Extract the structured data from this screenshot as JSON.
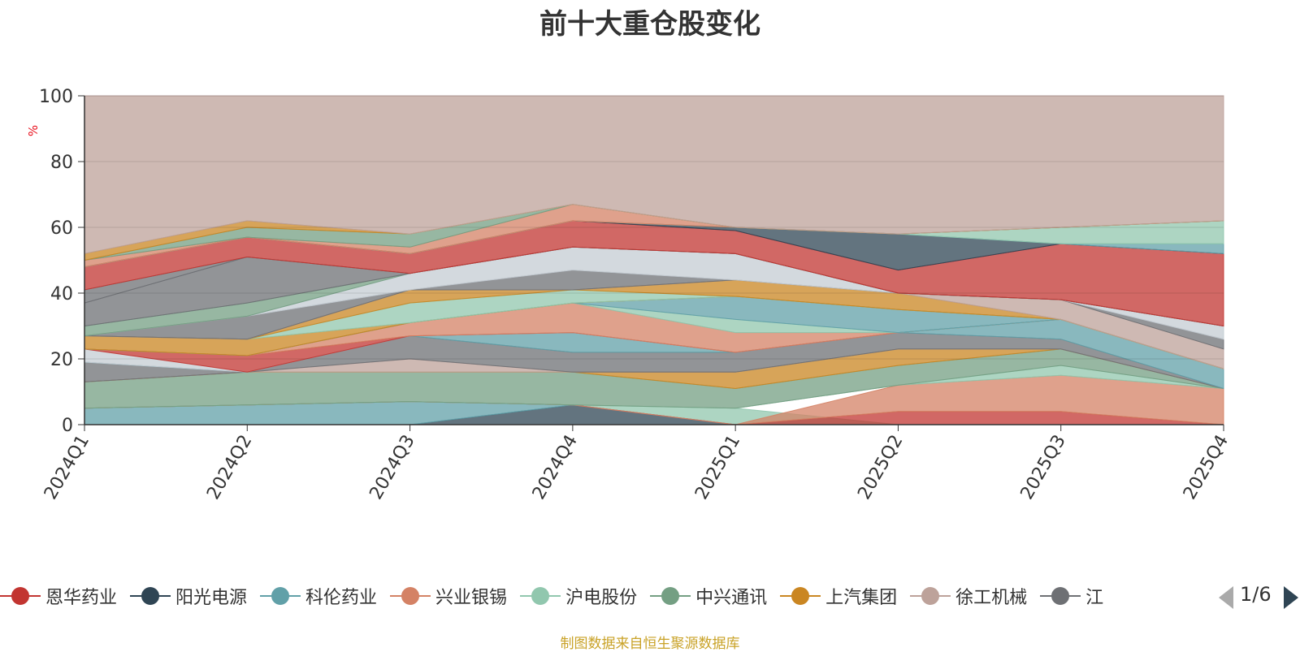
{
  "pager": {
    "text": "1/6"
  },
  "source": "制图数据来自恒生聚源数据库",
  "chart_data": {
    "type": "area",
    "title": "前十大重仓股变化",
    "ylabel": "%",
    "ylim": [
      0,
      100
    ],
    "yticks": [
      0,
      20,
      40,
      60,
      80,
      100
    ],
    "grid": true,
    "legend_position": "bottom",
    "categories": [
      "2024Q1",
      "2024Q2",
      "2024Q3",
      "2024Q4",
      "2025Q1",
      "2025Q2",
      "2025Q3",
      "2025Q4"
    ],
    "bands": [
      {
        "color": "#2f4554",
        "values": [
          [
            0,
            0
          ],
          [
            0,
            0
          ],
          [
            0,
            0
          ],
          [
            0,
            6
          ],
          [
            0,
            0
          ],
          [
            0,
            0
          ],
          [
            0,
            0
          ],
          [
            0,
            0
          ]
        ]
      },
      {
        "color": "#61a0a8",
        "values": [
          [
            0,
            5
          ],
          [
            0,
            6
          ],
          [
            0,
            7
          ],
          [
            6,
            6
          ],
          [
            0,
            0
          ],
          [
            0,
            0
          ],
          [
            0,
            0
          ],
          [
            0,
            0
          ]
        ]
      },
      {
        "color": "#91c7ae",
        "values": [
          [
            5,
            5
          ],
          [
            6,
            6
          ],
          [
            7,
            7
          ],
          [
            6,
            6
          ],
          [
            0,
            5
          ],
          [
            0,
            0
          ],
          [
            0,
            0
          ],
          [
            0,
            0
          ]
        ]
      },
      {
        "color": "#c23531",
        "values": [
          [
            5,
            5
          ],
          [
            6,
            6
          ],
          [
            7,
            7
          ],
          [
            6,
            6
          ],
          [
            0,
            0
          ],
          [
            0,
            4
          ],
          [
            0,
            4
          ],
          [
            0,
            0
          ]
        ]
      },
      {
        "color": "#d48265",
        "values": [
          [
            5,
            5
          ],
          [
            6,
            6
          ],
          [
            7,
            7
          ],
          [
            6,
            6
          ],
          [
            0,
            0
          ],
          [
            4,
            12
          ],
          [
            4,
            15
          ],
          [
            0,
            11
          ]
        ]
      },
      {
        "color": "#91c7ae",
        "values": [
          [
            5,
            5
          ],
          [
            6,
            6
          ],
          [
            7,
            7
          ],
          [
            6,
            6
          ],
          [
            5,
            5
          ],
          [
            12,
            12
          ],
          [
            15,
            18
          ],
          [
            11,
            11
          ]
        ]
      },
      {
        "color": "#749f83",
        "values": [
          [
            5,
            13
          ],
          [
            6,
            16
          ],
          [
            7,
            16
          ],
          [
            6,
            16
          ],
          [
            5,
            11
          ],
          [
            12,
            18
          ],
          [
            18,
            23
          ],
          [
            11,
            11
          ]
        ]
      },
      {
        "color": "#ca8622",
        "values": [
          [
            13,
            13
          ],
          [
            16,
            16
          ],
          [
            16,
            16
          ],
          [
            16,
            16
          ],
          [
            11,
            16
          ],
          [
            18,
            23
          ],
          [
            23,
            23
          ],
          [
            11,
            11
          ]
        ]
      },
      {
        "color": "#bda29a",
        "values": [
          [
            13,
            13
          ],
          [
            16,
            16
          ],
          [
            16,
            20
          ],
          [
            16,
            16
          ],
          [
            16,
            16
          ],
          [
            23,
            23
          ],
          [
            23,
            23
          ],
          [
            11,
            11
          ]
        ]
      },
      {
        "color": "#6e7074",
        "values": [
          [
            13,
            19
          ],
          [
            16,
            16
          ],
          [
            20,
            27
          ],
          [
            16,
            22
          ],
          [
            16,
            22
          ],
          [
            23,
            28
          ],
          [
            23,
            26
          ],
          [
            11,
            11
          ]
        ]
      },
      {
        "color": "#61a0a8",
        "values": [
          [
            19,
            19
          ],
          [
            16,
            16
          ],
          [
            27,
            27
          ],
          [
            22,
            28
          ],
          [
            22,
            22
          ],
          [
            28,
            28
          ],
          [
            26,
            32
          ],
          [
            11,
            17
          ]
        ]
      },
      {
        "color": "#c4ccd3",
        "values": [
          [
            19,
            23
          ],
          [
            16,
            16
          ],
          [
            27,
            27
          ],
          [
            28,
            28
          ],
          [
            22,
            22
          ],
          [
            28,
            28
          ],
          [
            32,
            32
          ],
          [
            17,
            17
          ]
        ]
      },
      {
        "color": "#c23531",
        "values": [
          [
            23,
            23
          ],
          [
            16,
            21
          ],
          [
            27,
            27
          ],
          [
            28,
            28
          ],
          [
            22,
            22
          ],
          [
            28,
            28
          ],
          [
            32,
            32
          ],
          [
            17,
            17
          ]
        ]
      },
      {
        "color": "#d48265",
        "values": [
          [
            23,
            23
          ],
          [
            21,
            21
          ],
          [
            27,
            31
          ],
          [
            28,
            37
          ],
          [
            22,
            28
          ],
          [
            28,
            28
          ],
          [
            32,
            32
          ],
          [
            17,
            17
          ]
        ]
      },
      {
        "color": "#91c7ae",
        "values": [
          [
            23,
            23
          ],
          [
            21,
            21
          ],
          [
            31,
            31
          ],
          [
            37,
            37
          ],
          [
            28,
            32
          ],
          [
            28,
            28
          ],
          [
            32,
            32
          ],
          [
            17,
            17
          ]
        ]
      },
      {
        "color": "#61a0a8",
        "values": [
          [
            23,
            23
          ],
          [
            21,
            21
          ],
          [
            31,
            31
          ],
          [
            37,
            37
          ],
          [
            32,
            39
          ],
          [
            28,
            35
          ],
          [
            32,
            32
          ],
          [
            17,
            17
          ]
        ]
      },
      {
        "color": "#ca8622",
        "values": [
          [
            23,
            27
          ],
          [
            21,
            26
          ],
          [
            31,
            31
          ],
          [
            37,
            37
          ],
          [
            39,
            39
          ],
          [
            35,
            35
          ],
          [
            32,
            32
          ],
          [
            17,
            17
          ]
        ]
      },
      {
        "color": "#91c7ae",
        "values": [
          [
            27,
            27
          ],
          [
            26,
            26
          ],
          [
            31,
            37
          ],
          [
            37,
            41
          ],
          [
            39,
            39
          ],
          [
            35,
            35
          ],
          [
            32,
            32
          ],
          [
            17,
            17
          ]
        ]
      },
      {
        "color": "#ca8622",
        "values": [
          [
            27,
            27
          ],
          [
            26,
            26
          ],
          [
            37,
            41
          ],
          [
            41,
            41
          ],
          [
            39,
            44
          ],
          [
            35,
            40
          ],
          [
            32,
            32
          ],
          [
            17,
            17
          ]
        ]
      },
      {
        "color": "#bda29a",
        "values": [
          [
            27,
            27
          ],
          [
            26,
            26
          ],
          [
            41,
            41
          ],
          [
            41,
            41
          ],
          [
            44,
            44
          ],
          [
            40,
            40
          ],
          [
            32,
            38
          ],
          [
            17,
            23
          ]
        ]
      },
      {
        "color": "#6e7074",
        "values": [
          [
            27,
            27
          ],
          [
            26,
            33
          ],
          [
            41,
            41
          ],
          [
            41,
            47
          ],
          [
            44,
            44
          ],
          [
            40,
            40
          ],
          [
            38,
            38
          ],
          [
            23,
            26
          ]
        ]
      },
      {
        "color": "#c4ccd3",
        "values": [
          [
            27,
            27
          ],
          [
            33,
            33
          ],
          [
            41,
            46
          ],
          [
            47,
            54
          ],
          [
            44,
            52
          ],
          [
            40,
            40
          ],
          [
            38,
            38
          ],
          [
            26,
            30
          ]
        ]
      },
      {
        "color": "#749f83",
        "values": [
          [
            27,
            30
          ],
          [
            33,
            37
          ],
          [
            46,
            46
          ],
          [
            54,
            54
          ],
          [
            52,
            52
          ],
          [
            40,
            40
          ],
          [
            38,
            38
          ],
          [
            30,
            30
          ]
        ]
      },
      {
        "color": "#6e7074",
        "values": [
          [
            30,
            37
          ],
          [
            37,
            51
          ],
          [
            46,
            46
          ],
          [
            54,
            54
          ],
          [
            52,
            52
          ],
          [
            40,
            40
          ],
          [
            38,
            38
          ],
          [
            30,
            30
          ]
        ]
      },
      {
        "color": "#6e7074",
        "values": [
          [
            37,
            41
          ],
          [
            51,
            51
          ],
          [
            46,
            46
          ],
          [
            54,
            54
          ],
          [
            52,
            52
          ],
          [
            40,
            40
          ],
          [
            38,
            38
          ],
          [
            30,
            30
          ]
        ]
      },
      {
        "color": "#c23531",
        "values": [
          [
            41,
            48
          ],
          [
            51,
            57
          ],
          [
            46,
            52
          ],
          [
            54,
            62
          ],
          [
            52,
            59
          ],
          [
            40,
            47
          ],
          [
            38,
            55
          ],
          [
            30,
            52
          ]
        ]
      },
      {
        "color": "#2f4554",
        "values": [
          [
            48,
            48
          ],
          [
            57,
            57
          ],
          [
            52,
            52
          ],
          [
            62,
            62
          ],
          [
            59,
            60
          ],
          [
            47,
            58
          ],
          [
            55,
            55
          ],
          [
            52,
            52
          ]
        ]
      },
      {
        "color": "#61a0a8",
        "values": [
          [
            48,
            48
          ],
          [
            57,
            57
          ],
          [
            52,
            52
          ],
          [
            62,
            62
          ],
          [
            60,
            60
          ],
          [
            58,
            58
          ],
          [
            55,
            55
          ],
          [
            52,
            55
          ]
        ]
      },
      {
        "color": "#91c7ae",
        "values": [
          [
            48,
            48
          ],
          [
            57,
            57
          ],
          [
            52,
            52
          ],
          [
            62,
            62
          ],
          [
            60,
            60
          ],
          [
            58,
            58
          ],
          [
            55,
            60
          ],
          [
            55,
            62
          ]
        ]
      },
      {
        "color": "#d48265",
        "values": [
          [
            48,
            50
          ],
          [
            57,
            57
          ],
          [
            52,
            54
          ],
          [
            62,
            67
          ],
          [
            60,
            60
          ],
          [
            58,
            58
          ],
          [
            60,
            60
          ],
          [
            62,
            62
          ]
        ]
      },
      {
        "color": "#749f83",
        "values": [
          [
            50,
            50
          ],
          [
            57,
            60
          ],
          [
            54,
            58
          ],
          [
            67,
            67
          ],
          [
            60,
            60
          ],
          [
            58,
            58
          ],
          [
            60,
            60
          ],
          [
            62,
            62
          ]
        ]
      },
      {
        "color": "#ca8622",
        "values": [
          [
            50,
            52
          ],
          [
            60,
            62
          ],
          [
            58,
            58
          ],
          [
            67,
            67
          ],
          [
            60,
            60
          ],
          [
            58,
            58
          ],
          [
            60,
            60
          ],
          [
            62,
            62
          ]
        ]
      },
      {
        "color": "#bda29a",
        "values": [
          [
            52,
            100
          ],
          [
            62,
            100
          ],
          [
            58,
            100
          ],
          [
            67,
            100
          ],
          [
            60,
            100
          ],
          [
            58,
            100
          ],
          [
            60,
            100
          ],
          [
            62,
            100
          ]
        ]
      }
    ],
    "legend": [
      {
        "name": "恩华药业",
        "color": "#c23531"
      },
      {
        "name": "阳光电源",
        "color": "#2f4554"
      },
      {
        "name": "科伦药业",
        "color": "#61a0a8"
      },
      {
        "name": "兴业银锡",
        "color": "#d48265"
      },
      {
        "name": "沪电股份",
        "color": "#91c7ae"
      },
      {
        "name": "中兴通讯",
        "color": "#749f83"
      },
      {
        "name": "上汽集团",
        "color": "#ca8622"
      },
      {
        "name": "徐工机械",
        "color": "#bda29a"
      },
      {
        "name": "江",
        "color": "#6e7074"
      }
    ]
  }
}
